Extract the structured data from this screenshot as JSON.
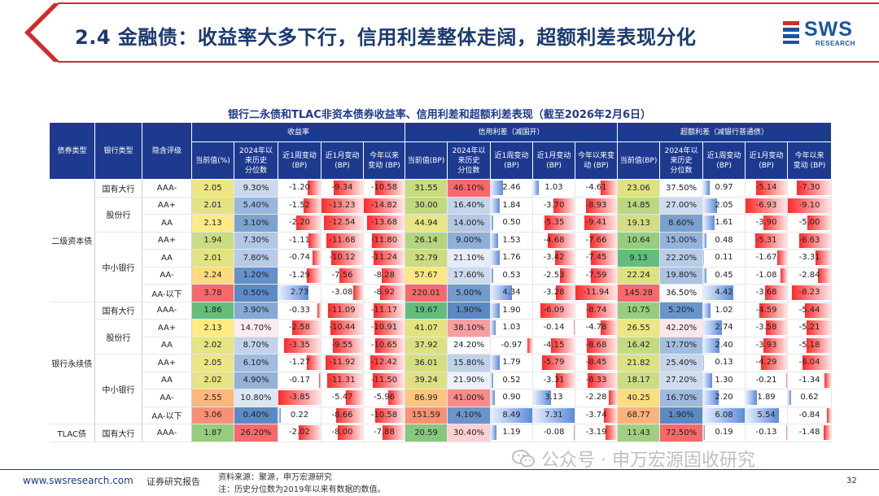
{
  "header": {
    "title": "2.4 金融债：收益率大多下行，信用利差整体走阔，超额利差表现分化",
    "logo_text": "SWS",
    "logo_sub": "RESEARCH",
    "accent": "#1a56a0"
  },
  "table": {
    "title": "银行二永债和TLAC非资本债券收益率、信用利差和超额利差表现（截至2026年2月6日）",
    "row_headers": [
      "债券类型",
      "银行类型",
      "隐含评级"
    ],
    "groups": [
      "收益率",
      "信用利差（减国开）",
      "超额利差（减银行普通债）"
    ],
    "col_headers": [
      "当前值(%)",
      "2024年以来历史分位数",
      "近1周变动(BP)",
      "近1月变动(BP)",
      "今年以来变动(BP)",
      "当前值(BP)",
      "2024年以来历史分位数",
      "近1周变动(BP)",
      "近1月变动(BP)",
      "今年以来变动(BP)",
      "当前值(BP)",
      "2024年以来历史分位数",
      "近1周变动(BP)",
      "近1月变动(BP)",
      "今年以来变动(BP)"
    ],
    "col_headers_display": [
      "当前值(%)",
      "2024年以\n来历史\n分位数",
      "近1周变动\n(BP)",
      "近1月变动\n(BP)",
      "今年以来\n变动 (BP)",
      "当前值(BP)",
      "2024年以\n来历史\n分位数",
      "近1周变动\n(BP)",
      "近1月变动\n(BP)",
      "今年以来变\n动 (BP)",
      "当前值(BP)",
      "2024年以\n来历史\n分位数",
      "近1周变动\n(BP)",
      "近1月变动\n(BP)",
      "今年以来\n变动 (BP)"
    ],
    "rows": [
      {
        "type": "二级资本债",
        "bank": "国有大行",
        "rating": "AAA-",
        "v": [
          "2.05",
          "9.30%",
          "-1.20",
          "-9.34",
          "-10.58",
          "31.55",
          "46.10%",
          "2.46",
          "1.03",
          "-4.61",
          "23.06",
          "37.50%",
          "0.97",
          "-5.14",
          "-7.30"
        ]
      },
      {
        "type": "",
        "bank": "股份行",
        "rating": "AA+",
        "v": [
          "2.01",
          "5.40%",
          "-1.52",
          "-13.23",
          "-14.82",
          "30.00",
          "16.40%",
          "1.84",
          "-3.70",
          "-8.93",
          "14.85",
          "27.00%",
          "2.05",
          "-6.93",
          "-9.10"
        ]
      },
      {
        "type": "",
        "bank": "",
        "rating": "AA",
        "v": [
          "2.13",
          "3.10%",
          "-2.20",
          "-12.54",
          "-13.68",
          "44.94",
          "14.00%",
          "0.50",
          "-5.35",
          "-9.41",
          "19.13",
          "8.60%",
          "1.61",
          "-3.90",
          "-5.00"
        ]
      },
      {
        "type": "",
        "bank": "中小银行",
        "rating": "AA+",
        "v": [
          "1.94",
          "7.30%",
          "-1.11",
          "-11.68",
          "-11.80",
          "26.14",
          "9.00%",
          "1.53",
          "-4.68",
          "-7.66",
          "10.64",
          "15.00%",
          "0.48",
          "-5.31",
          "-6.63"
        ]
      },
      {
        "type": "",
        "bank": "",
        "rating": "AA",
        "v": [
          "2.01",
          "7.80%",
          "-0.74",
          "-10.12",
          "-11.24",
          "32.79",
          "21.10%",
          "1.76",
          "-3.42",
          "-7.45",
          "9.13",
          "22.20%",
          "0.11",
          "-1.67",
          "-3.31"
        ]
      },
      {
        "type": "",
        "bank": "",
        "rating": "AA-",
        "v": [
          "2.24",
          "1.20%",
          "-1.29",
          "-7.56",
          "-8.28",
          "57.67",
          "17.60%",
          "0.53",
          "-2.53",
          "-7.59",
          "22.24",
          "19.80%",
          "0.45",
          "-1.08",
          "-2.84"
        ]
      },
      {
        "type": "",
        "bank": "",
        "rating": "AA-以下",
        "v": [
          "3.78",
          "0.50%",
          "2.73",
          "-3.08",
          "-8.92",
          "220.01",
          "5.00%",
          "4.34",
          "-3.28",
          "-11.94",
          "145.28",
          "36.50%",
          "4.42",
          "-3.68",
          "-8.23"
        ]
      },
      {
        "type": "银行永续债",
        "bank": "国有大行",
        "rating": "AAA-",
        "v": [
          "1.86",
          "3.90%",
          "-0.33",
          "-11.09",
          "-11.17",
          "19.67",
          "1.90%",
          "1.90",
          "-6.09",
          "-8.74",
          "10.75",
          "5.20%",
          "1.02",
          "-4.59",
          "-5.44"
        ]
      },
      {
        "type": "",
        "bank": "股份行",
        "rating": "AA+",
        "v": [
          "2.13",
          "14.70%",
          "-2.58",
          "-10.44",
          "-10.91",
          "41.07",
          "38.10%",
          "1.03",
          "-0.14",
          "-4.78",
          "26.55",
          "42.20%",
          "2.74",
          "-3.58",
          "-5.21"
        ]
      },
      {
        "type": "",
        "bank": "",
        "rating": "AA",
        "v": [
          "2.02",
          "8.70%",
          "-3.35",
          "-9.55",
          "-10.65",
          "37.92",
          "24.20%",
          "-0.97",
          "-4.15",
          "-8.68",
          "16.42",
          "17.70%",
          "2.40",
          "-3.93",
          "-5.18"
        ]
      },
      {
        "type": "",
        "bank": "中小银行",
        "rating": "AA+",
        "v": [
          "2.05",
          "6.10%",
          "-1.27",
          "-11.92",
          "-12.42",
          "36.01",
          "15.80%",
          "1.79",
          "-5.79",
          "-8.45",
          "21.82",
          "25.40%",
          "0.13",
          "-4.29",
          "-6.04"
        ]
      },
      {
        "type": "",
        "bank": "",
        "rating": "AA",
        "v": [
          "2.02",
          "4.90%",
          "-0.17",
          "-11.31",
          "-11.50",
          "39.24",
          "21.90%",
          "0.52",
          "-3.31",
          "-8.33",
          "18.17",
          "27.20%",
          "1.30",
          "-0.21",
          "-1.34"
        ]
      },
      {
        "type": "",
        "bank": "",
        "rating": "AA-",
        "v": [
          "2.55",
          "10.80%",
          "-3.85",
          "-5.47",
          "-5.96",
          "86.99",
          "41.00%",
          "0.90",
          "3.13",
          "-2.28",
          "40.25",
          "16.70%",
          "2.20",
          "1.89",
          "0.62"
        ]
      },
      {
        "type": "",
        "bank": "",
        "rating": "AA-以下",
        "v": [
          "3.06",
          "0.40%",
          "0.22",
          "-8.66",
          "-10.58",
          "151.59",
          "4.10%",
          "8.49",
          "7.31",
          "-3.74",
          "68.77",
          "1.90%",
          "6.08",
          "5.54",
          "-0.84"
        ]
      },
      {
        "type": "TLAC债",
        "bank": "国有大行",
        "rating": "AAA-",
        "v": [
          "1.87",
          "26.20%",
          "-2.02",
          "-8.00",
          "-7.88",
          "20.59",
          "30.40%",
          "1.19",
          "-0.08",
          "-3.19",
          "11.43",
          "72.50%",
          "0.19",
          "-0.13",
          "-1.48"
        ]
      }
    ]
  },
  "footer": {
    "url": "www.swsresearch.com",
    "report": "证券研究报告",
    "source": "资料来源：聚源，申万宏源研究",
    "note": "注：历史分位数为2019年以来有数据的数值。",
    "page": "32",
    "watermark": "公众号 · 申万宏源固收研究"
  }
}
